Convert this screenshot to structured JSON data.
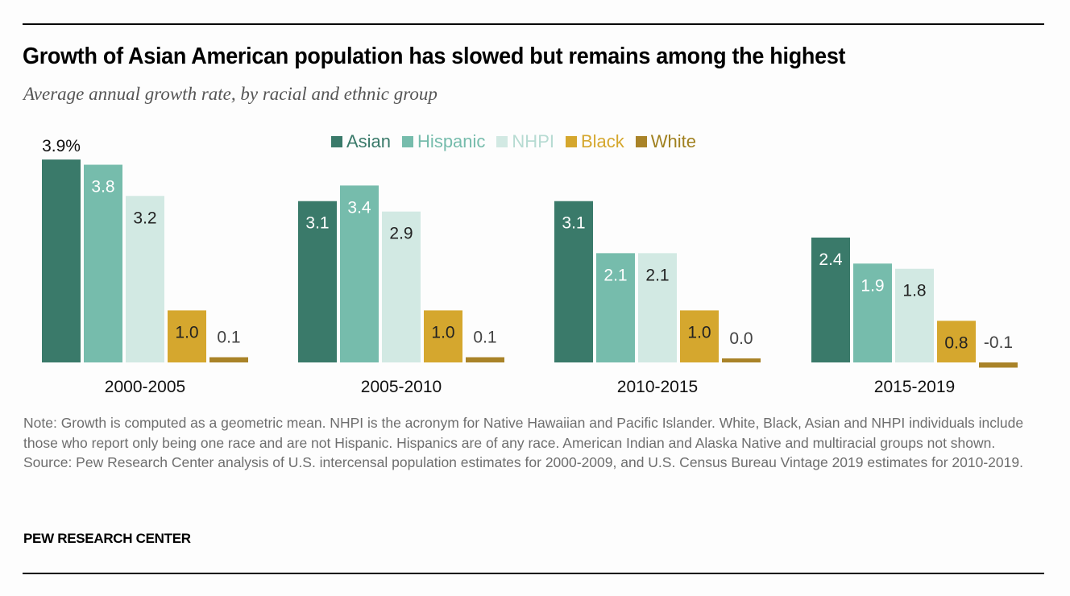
{
  "title": "Growth of Asian American population has slowed but remains among the highest",
  "subtitle": "Average annual growth rate, by racial and ethnic group",
  "legend": [
    {
      "name": "Asian",
      "color": "#3a7a6a"
    },
    {
      "name": "Hispanic",
      "color": "#76bcac"
    },
    {
      "name": "NHPI",
      "color": "#d2e9e3"
    },
    {
      "name": "Black",
      "color": "#d5a72e"
    },
    {
      "name": "White",
      "color": "#a98328"
    }
  ],
  "legend_text_colors": {
    "Asian": "#3a7a6a",
    "Hispanic": "#76bcac",
    "NHPI": "#b6dbd2",
    "Black": "#d5a72e",
    "White": "#a0801f"
  },
  "chart_data": {
    "type": "bar",
    "title": "Growth of Asian American population has slowed but remains among the highest",
    "subtitle": "Average annual growth rate, by racial and ethnic group",
    "xlabel": "",
    "ylabel": "",
    "unit": "%",
    "grid": false,
    "legend_position": "top-center",
    "categories": [
      "2000-2005",
      "2005-2010",
      "2010-2015",
      "2015-2019"
    ],
    "series": [
      {
        "name": "Asian",
        "values": [
          3.9,
          3.1,
          3.1,
          2.4
        ],
        "labels": [
          "3.9%",
          "3.1",
          "3.1",
          "2.4"
        ]
      },
      {
        "name": "Hispanic",
        "values": [
          3.8,
          3.4,
          2.1,
          1.9
        ],
        "labels": [
          "3.8",
          "3.4",
          "2.1",
          "1.9"
        ]
      },
      {
        "name": "NHPI",
        "values": [
          3.2,
          2.9,
          2.1,
          1.8
        ],
        "labels": [
          "3.2",
          "2.9",
          "2.1",
          "1.8"
        ]
      },
      {
        "name": "Black",
        "values": [
          1.0,
          1.0,
          1.0,
          0.8
        ],
        "labels": [
          "1.0",
          "1.0",
          "1.0",
          "0.8"
        ]
      },
      {
        "name": "White",
        "values": [
          0.1,
          0.1,
          0.0,
          -0.1
        ],
        "labels": [
          "0.1",
          "0.1",
          "0.0",
          "-0.1"
        ]
      }
    ],
    "ylim": [
      -0.1,
      3.9
    ]
  },
  "notes": {
    "note": "Note: Growth is computed as a geometric mean. NHPI is the acronym for Native Hawaiian and Pacific Islander. White, Black, Asian and NHPI individuals include those who report only being one race and are not Hispanic. Hispanics are of any race. American Indian and Alaska Native and multiracial groups not shown.",
    "source": "Source: Pew Research Center analysis of U.S. intercensal population estimates for 2000-2009, and U.S. Census Bureau Vintage 2019 estimates for 2010-2019."
  },
  "brand": "PEW RESEARCH CENTER"
}
